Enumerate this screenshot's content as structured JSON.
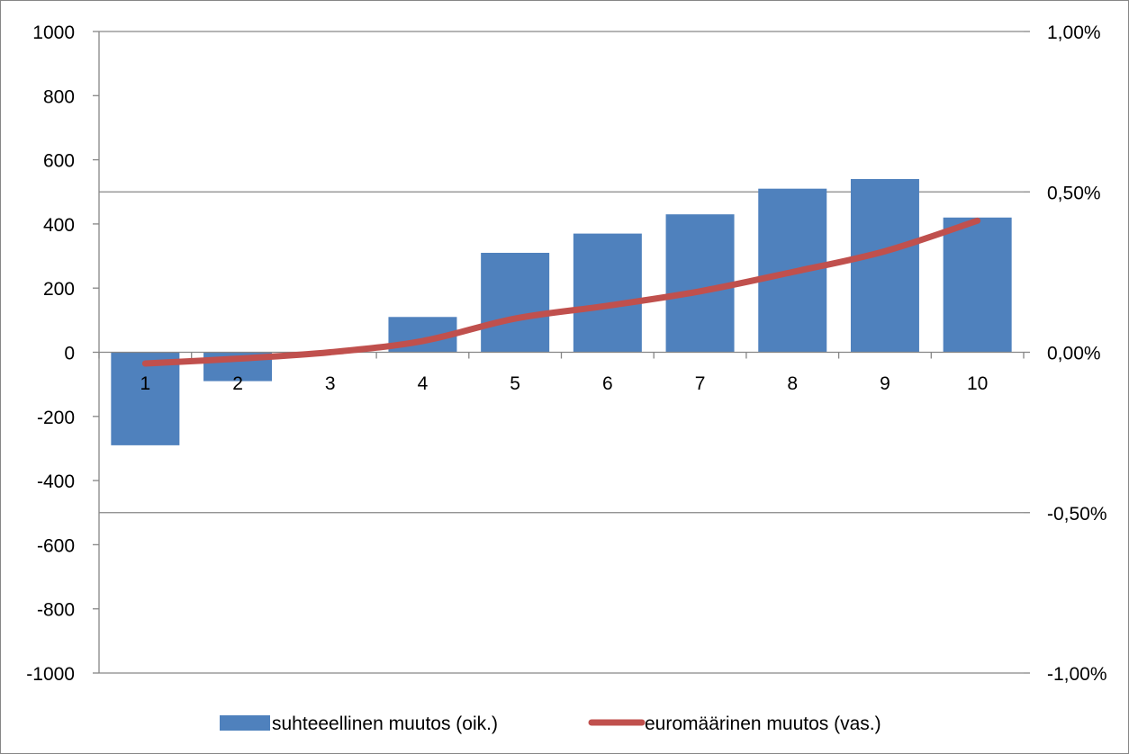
{
  "chart_data": {
    "type": "bar",
    "categories": [
      "1",
      "2",
      "3",
      "4",
      "5",
      "6",
      "7",
      "8",
      "9",
      "10"
    ],
    "series": [
      {
        "name": "suhteeellinen muutos (oik.)",
        "type": "bar",
        "axis": "right",
        "color": "#4f81bd",
        "values": [
          -0.29,
          -0.09,
          0.0,
          0.11,
          0.31,
          0.37,
          0.43,
          0.51,
          0.54,
          0.42
        ]
      },
      {
        "name": "euromäärinen muutos (vas.)",
        "type": "line",
        "axis": "left",
        "color": "#c0504d",
        "values": [
          -35,
          -20,
          0,
          35,
          105,
          145,
          190,
          250,
          315,
          410
        ]
      }
    ],
    "left_axis": {
      "ylim": [
        -1000,
        1000
      ],
      "ticks": [
        1000,
        800,
        600,
        400,
        200,
        0,
        -200,
        -400,
        -600,
        -800,
        -1000
      ],
      "tick_labels": [
        "1000",
        "800",
        "600",
        "400",
        "200",
        "0",
        "-200",
        "-400",
        "-600",
        "-800",
        "-1000"
      ]
    },
    "right_axis": {
      "ylim": [
        -1.0,
        1.0
      ],
      "ticks": [
        1.0,
        0.5,
        0.0,
        -0.5,
        -1.0
      ],
      "tick_labels": [
        "1,00%",
        "0,50%",
        "0,00%",
        "-0,50%",
        "-1,00%"
      ]
    },
    "gridlines": "right-axis major",
    "legend": "bottom",
    "title": "",
    "xlabel": "",
    "ylabel": ""
  }
}
